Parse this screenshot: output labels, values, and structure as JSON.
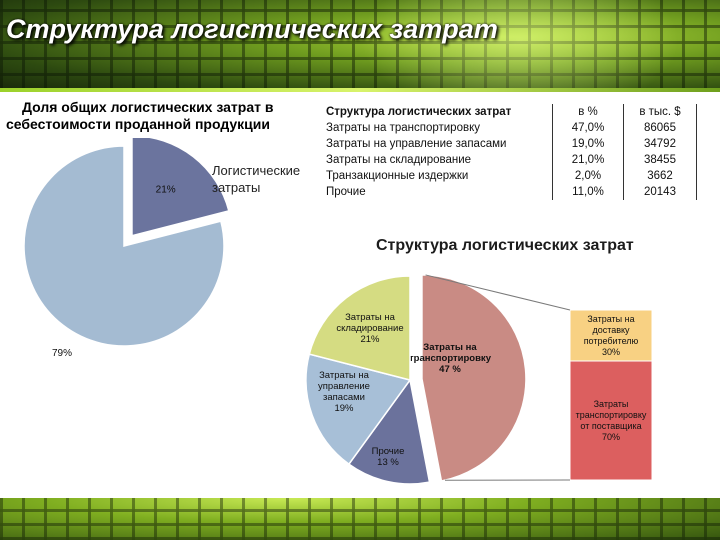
{
  "header": {
    "title": "Структура логистических затрат"
  },
  "left_chart": {
    "title_line1": "Доля общих логистических затрат в",
    "title_line2": "себестоимости проданной продукции",
    "legend_line1": "Логистические",
    "legend_line2": "затраты"
  },
  "table": {
    "header": [
      "Структура логистических затрат",
      "в %",
      "в тыс. $"
    ],
    "rows": [
      [
        "Затраты на транспортировку",
        "47,0%",
        "86065"
      ],
      [
        "Затраты на управление запасами",
        "19,0%",
        "34792"
      ],
      [
        "Затраты на складирование",
        "21,0%",
        "38455"
      ],
      [
        "Транзакционные издержки",
        "2,0%",
        "3662"
      ],
      [
        "Прочие",
        "11,0%",
        "20143"
      ]
    ]
  },
  "right_chart": {
    "title": "Структура логистических затрат",
    "bar_segments": [
      {
        "label_lines": [
          "Затраты на",
          "доставку",
          "потребителю"
        ],
        "pct": "30%"
      },
      {
        "label_lines": [
          "Затраты",
          "транспортировку",
          "от поставщика"
        ],
        "pct": "70%"
      }
    ]
  },
  "chart_data": [
    {
      "type": "pie",
      "title": "Доля общих логистических затрат в себестоимости проданной продукции",
      "slices": [
        {
          "name": "Логистические затраты",
          "value": 21,
          "label": "21%",
          "color": "#6b749e",
          "exploded": true
        },
        {
          "name": "",
          "value": 79,
          "label": "79%",
          "color": "#a4bbd2",
          "exploded": false
        }
      ]
    },
    {
      "type": "pie",
      "title": "Структура логистических затрат",
      "slices": [
        {
          "name": "Затраты на транспортировку",
          "value": 47,
          "label_lines": [
            "Затраты на",
            "транспортировку",
            "47 %"
          ],
          "color": "#c98b84"
        },
        {
          "name": "Прочие",
          "value": 13,
          "label_lines": [
            "Прочие",
            "13 %"
          ],
          "color": "#6b729c"
        },
        {
          "name": "Затраты на управление запасами",
          "value": 19,
          "label_lines": [
            "Затраты на",
            "управление",
            "запасами",
            "19%"
          ],
          "color": "#a7bfd7"
        },
        {
          "name": "Затраты на складирование",
          "value": 21,
          "label_lines": [
            "Затраты на",
            "складирование",
            "21%"
          ],
          "color": "#d5dc82"
        }
      ]
    }
  ]
}
